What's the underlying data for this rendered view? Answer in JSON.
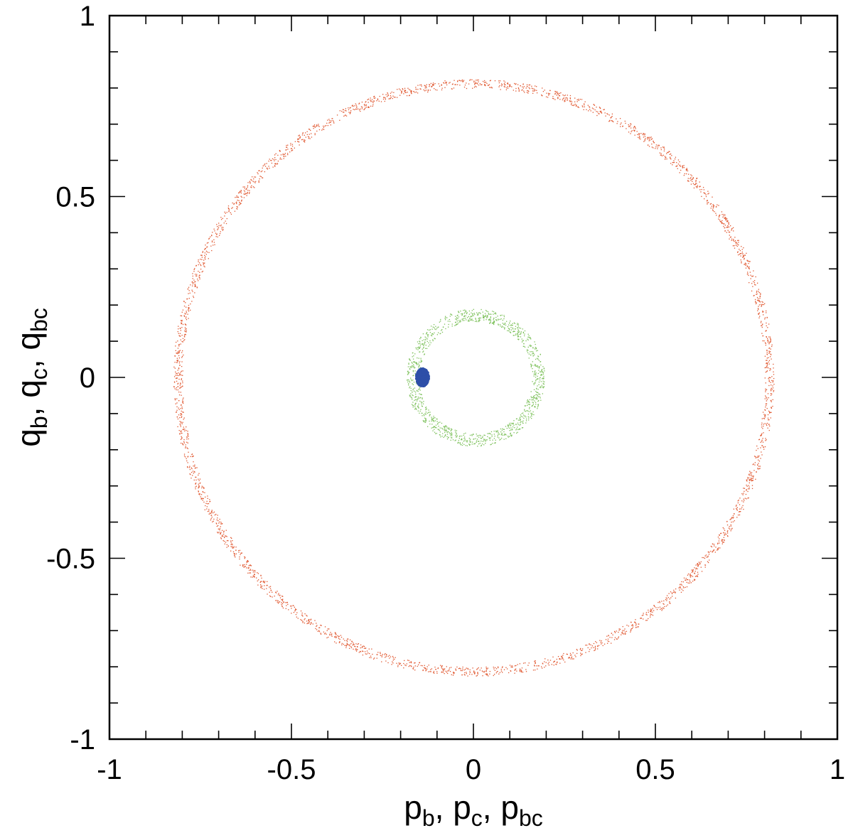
{
  "chart_data": {
    "type": "scatter",
    "title": "",
    "xlabel": {
      "parts": [
        {
          "base": "p",
          "sub": "b"
        },
        {
          "base": "p",
          "sub": "c"
        },
        {
          "base": "p",
          "sub": "bc"
        }
      ]
    },
    "ylabel": {
      "parts": [
        {
          "base": "q",
          "sub": "b"
        },
        {
          "base": "q",
          "sub": "c"
        },
        {
          "base": "q",
          "sub": "bc"
        }
      ]
    },
    "xlim": [
      -1,
      1
    ],
    "ylim": [
      -1,
      1
    ],
    "x_ticks": [
      {
        "value": -1,
        "label": "-1"
      },
      {
        "value": -0.5,
        "label": "-0.5"
      },
      {
        "value": 0,
        "label": "0"
      },
      {
        "value": 0.5,
        "label": "0.5"
      },
      {
        "value": 1,
        "label": "1"
      }
    ],
    "y_ticks": [
      {
        "value": -1,
        "label": "-1"
      },
      {
        "value": -0.5,
        "label": "-0.5"
      },
      {
        "value": 0,
        "label": "0"
      },
      {
        "value": 0.5,
        "label": "0.5"
      },
      {
        "value": 1,
        "label": "1"
      }
    ],
    "minor_tick_step": 0.1,
    "grid": false,
    "series": [
      {
        "color": "#e0562e",
        "shape": "ring",
        "center": [
          0,
          0
        ],
        "radius_inner": 0.8,
        "radius_outer": 0.825
      },
      {
        "color": "#7cc05a",
        "shape": "ring",
        "center": [
          0.005,
          0
        ],
        "radius_inner": 0.155,
        "radius_outer": 0.19
      },
      {
        "color": "#2e4fa8",
        "shape": "cluster",
        "center": [
          -0.14,
          0
        ],
        "radius_x": 0.018,
        "radius_y": 0.025
      }
    ]
  }
}
